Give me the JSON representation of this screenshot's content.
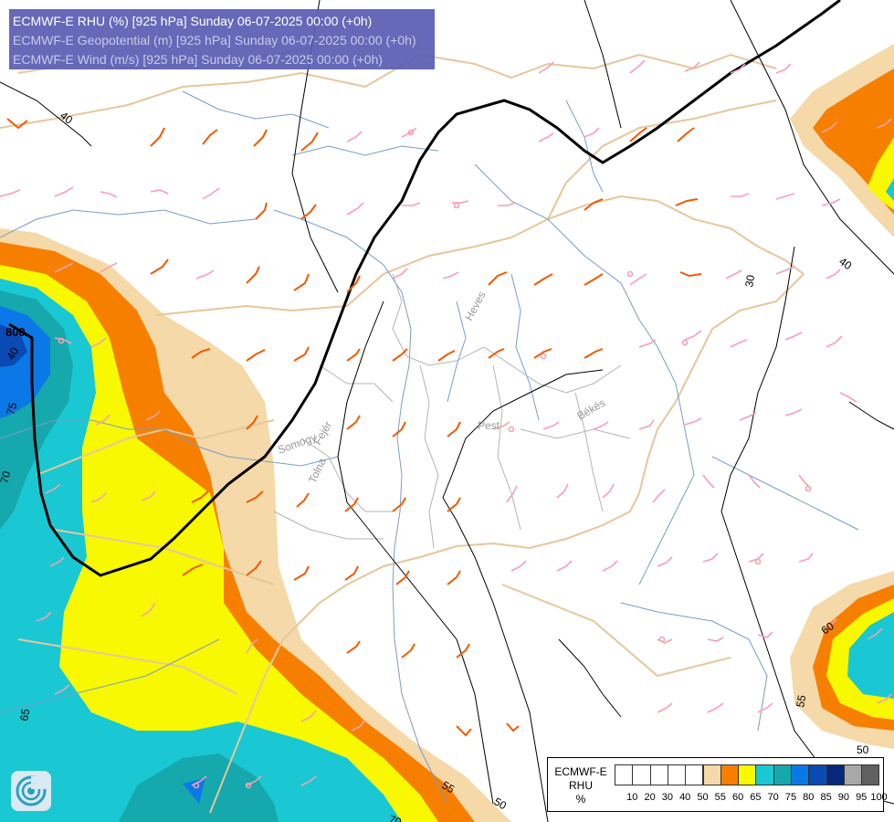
{
  "header": {
    "line1": "ECMWF-E RHU (%) [925 hPa] Sunday 06-07-2025 00:00 (+0h)",
    "line2": "ECMWF-E Geopotential (m) [925 hPa] Sunday 06-07-2025 00:00 (+0h)",
    "line3": "ECMWF-E Wind (m/s) [925 hPa] Sunday 06-07-2025 00:00 (+0h)"
  },
  "legend": {
    "model": "ECMWF-E",
    "variable": "RHU",
    "unit": "%",
    "classes": [
      {
        "label": "10",
        "color": "#ffffff"
      },
      {
        "label": "20",
        "color": "#ffffff"
      },
      {
        "label": "30",
        "color": "#ffffff"
      },
      {
        "label": "40",
        "color": "#ffffff"
      },
      {
        "label": "50",
        "color": "#ffffff"
      },
      {
        "label": "55",
        "color": "#f5d9a8"
      },
      {
        "label": "60",
        "color": "#f77f00"
      },
      {
        "label": "65",
        "color": "#f8f800"
      },
      {
        "label": "70",
        "color": "#19c8d2"
      },
      {
        "label": "75",
        "color": "#15a8ad"
      },
      {
        "label": "80",
        "color": "#0a78e6"
      },
      {
        "label": "85",
        "color": "#0a4ab4"
      },
      {
        "label": "90",
        "color": "#06287a"
      },
      {
        "label": "95",
        "color": "#a8a8a8"
      },
      {
        "label": "100",
        "color": "#606060"
      }
    ]
  },
  "place_labels": [
    "Heves",
    "Pest",
    "Békés",
    "Somogy",
    "Fejér",
    "Tolna"
  ],
  "contour_labels": [
    "40",
    "30",
    "40",
    "55",
    "50",
    "60",
    "65",
    "70",
    "75",
    "70",
    "55",
    "50",
    "800",
    "40"
  ],
  "colors": {
    "rh55": "#f5d9a8",
    "rh60": "#f77f00",
    "rh65": "#f8f800",
    "rh70": "#19c8d2",
    "rh75": "#15a8ad",
    "rh80": "#0a78e6",
    "rh85": "#0a4ab4",
    "border": "#e6c79c",
    "river": "#7a9cc8",
    "county": "#b4b4b4",
    "barb_strong": "#f05a00",
    "barb_weak": "#f5a0b4",
    "header_bg": "#585cb2"
  },
  "icons": [
    "ecmwf-logo-icon"
  ]
}
